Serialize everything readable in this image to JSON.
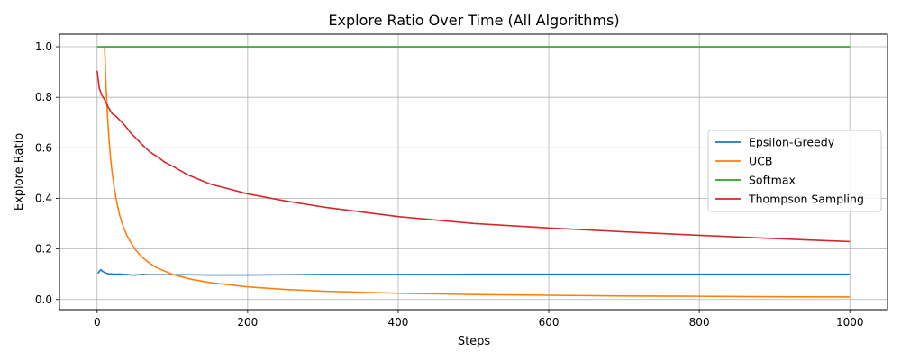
{
  "chart_data": {
    "type": "line",
    "title": "Explore Ratio Over Time (All Algorithms)",
    "xlabel": "Steps",
    "ylabel": "Explore Ratio",
    "xlim": [
      -50,
      1050
    ],
    "ylim": [
      -0.04,
      1.05
    ],
    "x_ticks": [
      0,
      200,
      400,
      600,
      800,
      1000
    ],
    "x_tick_labels": [
      "0",
      "200",
      "400",
      "600",
      "800",
      "1000"
    ],
    "y_ticks": [
      0.0,
      0.2,
      0.4,
      0.6,
      0.8,
      1.0
    ],
    "y_tick_labels": [
      "0.0",
      "0.2",
      "0.4",
      "0.6",
      "0.8",
      "1.0"
    ],
    "grid": true,
    "legend_position": "center-right",
    "series": [
      {
        "name": "Epsilon-Greedy",
        "color": "#1f77b4",
        "x": [
          1,
          3,
          5,
          7,
          10,
          15,
          20,
          25,
          30,
          35,
          40,
          45,
          50,
          60,
          70,
          80,
          100,
          120,
          150,
          200,
          250,
          300,
          400,
          500,
          600,
          700,
          800,
          900,
          1000
        ],
        "y": [
          0.103,
          0.112,
          0.118,
          0.112,
          0.107,
          0.102,
          0.101,
          0.1,
          0.101,
          0.099,
          0.099,
          0.097,
          0.097,
          0.099,
          0.098,
          0.098,
          0.098,
          0.098,
          0.097,
          0.097,
          0.098,
          0.099,
          0.099,
          0.1,
          0.1,
          0.1,
          0.1,
          0.1,
          0.1
        ]
      },
      {
        "name": "UCB",
        "color": "#ff7f0e",
        "x": [
          10,
          12,
          14,
          16,
          18,
          20,
          25,
          30,
          35,
          40,
          50,
          60,
          70,
          80,
          100,
          125,
          150,
          200,
          250,
          300,
          400,
          500,
          600,
          700,
          800,
          900,
          1000
        ],
        "y": [
          1.0,
          0.833,
          0.714,
          0.625,
          0.556,
          0.5,
          0.4,
          0.333,
          0.286,
          0.25,
          0.2,
          0.167,
          0.143,
          0.125,
          0.1,
          0.08,
          0.067,
          0.05,
          0.04,
          0.033,
          0.025,
          0.02,
          0.017,
          0.014,
          0.013,
          0.011,
          0.01
        ]
      },
      {
        "name": "Softmax",
        "color": "#2ca02c",
        "x": [
          0,
          1000
        ],
        "y": [
          1.0,
          1.0
        ]
      },
      {
        "name": "Thompson Sampling",
        "color": "#d62728",
        "x": [
          0,
          3,
          6,
          10,
          15,
          20,
          25,
          30,
          35,
          40,
          45,
          50,
          60,
          70,
          80,
          90,
          100,
          120,
          150,
          200,
          250,
          300,
          400,
          500,
          600,
          700,
          800,
          900,
          1000
        ],
        "y": [
          0.905,
          0.835,
          0.81,
          0.79,
          0.76,
          0.735,
          0.725,
          0.71,
          0.695,
          0.677,
          0.657,
          0.643,
          0.612,
          0.584,
          0.565,
          0.543,
          0.528,
          0.494,
          0.457,
          0.418,
          0.39,
          0.366,
          0.328,
          0.301,
          0.283,
          0.268,
          0.254,
          0.241,
          0.229
        ]
      }
    ]
  }
}
